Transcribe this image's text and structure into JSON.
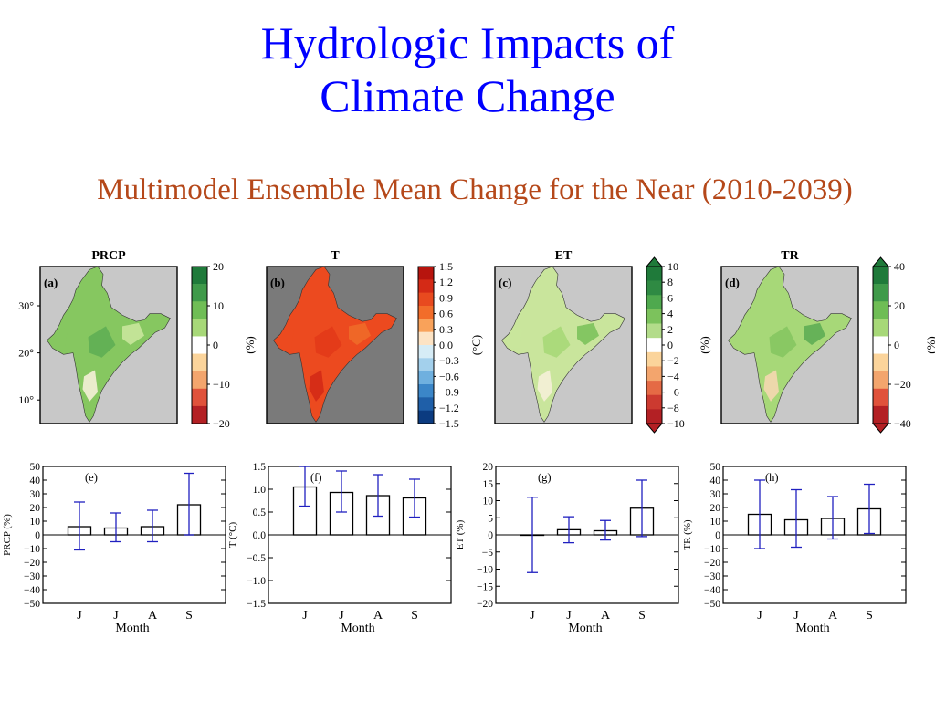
{
  "slide": {
    "title_line1": "Hydrologic Impacts of",
    "title_line2": "Climate Change",
    "subtitle": "Multimodel Ensemble Mean Change for the Near (2010-2039)"
  },
  "colors": {
    "title": "#0000ff",
    "subtitle": "#b5481a",
    "ocean_gray": "#c8c8c8",
    "dark_gray": "#7a7a7a",
    "bar_edge": "#000000",
    "error_bar": "#2020c0"
  },
  "maps": [
    {
      "panel": "(a)",
      "title": "PRCP",
      "unit": "(%)",
      "background": "ocean_gray",
      "lat_ticks": [
        "30°",
        "20°",
        "10°"
      ],
      "colorbar_labels": [
        "20",
        "10",
        "0",
        "−10",
        "−20"
      ],
      "colorbar_colors": [
        "#1f7a3a",
        "#3f9a4a",
        "#6fbd55",
        "#a7d878",
        "#ffffff",
        "#fbd49b",
        "#f3a56d",
        "#e0523b",
        "#b32024"
      ],
      "triangles": false,
      "fill_colors": [
        "#86c760",
        "#5fae54",
        "#c9e59c",
        "#f5f0d8"
      ]
    },
    {
      "panel": "(b)",
      "title": "T",
      "unit": "(°C)",
      "background": "dark_gray",
      "lat_ticks": [],
      "colorbar_labels": [
        "1.5",
        "1.2",
        "0.9",
        "0.6",
        "0.3",
        "0.0",
        "−0.3",
        "−0.6",
        "−0.9",
        "−1.2",
        "−1.5"
      ],
      "colorbar_colors": [
        "#b7140e",
        "#d42a16",
        "#e84a1f",
        "#f26d2a",
        "#f9a25a",
        "#fde3c4",
        "#d6ecf6",
        "#a3d0ec",
        "#6fb0df",
        "#3b86c8",
        "#1f5fa8",
        "#0b3b80"
      ],
      "triangles": false,
      "fill_colors": [
        "#ec4a1f",
        "#e33a18",
        "#f06a28",
        "#d42a16"
      ]
    },
    {
      "panel": "(c)",
      "title": "ET",
      "unit": "(%)",
      "background": "ocean_gray",
      "lat_ticks": [],
      "colorbar_labels": [
        "10",
        "8",
        "6",
        "4",
        "2",
        "0",
        "−2",
        "−4",
        "−6",
        "−8",
        "−10"
      ],
      "colorbar_colors": [
        "#1f7a3a",
        "#2f8a43",
        "#4fa94e",
        "#7cc25c",
        "#b3dc8a",
        "#ffffff",
        "#fbd49b",
        "#f3a56d",
        "#e56a45",
        "#cc3a30",
        "#b32024"
      ],
      "triangles": true,
      "fill_colors": [
        "#c9e59c",
        "#a7d878",
        "#7cc25c",
        "#f5f0d8"
      ]
    },
    {
      "panel": "(d)",
      "title": "TR",
      "unit": "(%)",
      "background": "ocean_gray",
      "lat_ticks": [],
      "colorbar_labels": [
        "40",
        "20",
        "0",
        "−20",
        "−40"
      ],
      "colorbar_colors": [
        "#1f7a3a",
        "#3f9a4a",
        "#6fbd55",
        "#a7d878",
        "#ffffff",
        "#fbd49b",
        "#f3a56d",
        "#e0523b",
        "#b32024"
      ],
      "triangles": true,
      "fill_colors": [
        "#a7d878",
        "#86c760",
        "#5fae54",
        "#f5d8b0"
      ]
    }
  ],
  "chart_data": [
    {
      "type": "bar",
      "panel": "(e)",
      "categories": [
        "J",
        "J",
        "A",
        "S"
      ],
      "values": [
        6,
        5,
        6,
        22
      ],
      "err_low": [
        -11,
        -5,
        -5,
        0
      ],
      "err_high": [
        24,
        16,
        18,
        45
      ],
      "ylim": [
        -50,
        50
      ],
      "ticks": [
        50,
        40,
        30,
        20,
        10,
        0,
        -10,
        -20,
        -30,
        -40,
        -50
      ],
      "tick_labels": [
        "50",
        "40",
        "30",
        "20",
        "10",
        "0",
        "−10",
        "−20",
        "−30",
        "−40",
        "−50"
      ],
      "xlabel": "Month",
      "ylabel": "PRCP (%)"
    },
    {
      "type": "bar",
      "panel": "(f)",
      "categories": [
        "J",
        "J",
        "A",
        "S"
      ],
      "values": [
        1.05,
        0.93,
        0.86,
        0.81
      ],
      "err_low": [
        0.63,
        0.5,
        0.41,
        0.39
      ],
      "err_high": [
        1.5,
        1.4,
        1.32,
        1.22
      ],
      "ylim": [
        -1.5,
        1.5
      ],
      "ticks": [
        1.5,
        1.0,
        0.5,
        0.0,
        -0.5,
        -1.0,
        -1.5
      ],
      "tick_labels": [
        "1.5",
        "1.0",
        "0.5",
        "0.0",
        "−0.5",
        "−1.0",
        "−1.5"
      ],
      "xlabel": "Month",
      "ylabel": "T (°C)"
    },
    {
      "type": "bar",
      "panel": "(g)",
      "categories": [
        "J",
        "J",
        "A",
        "S"
      ],
      "values": [
        0,
        1.5,
        1.2,
        7.8
      ],
      "err_low": [
        -11,
        -2.3,
        -1.5,
        -0.5
      ],
      "err_high": [
        11,
        5.3,
        4.2,
        16
      ],
      "ylim": [
        -20,
        20
      ],
      "ticks": [
        20,
        15,
        10,
        5,
        0,
        -5,
        -10,
        -15,
        -20
      ],
      "tick_labels": [
        "20",
        "15",
        "10",
        "5",
        "0",
        "−5",
        "−10",
        "−15",
        "−20"
      ],
      "xlabel": "Month",
      "ylabel": "ET (%)"
    },
    {
      "type": "bar",
      "panel": "(h)",
      "categories": [
        "J",
        "J",
        "A",
        "S"
      ],
      "values": [
        15,
        11,
        12,
        19
      ],
      "err_low": [
        -10,
        -9,
        -3,
        1
      ],
      "err_high": [
        40,
        33,
        28,
        37
      ],
      "ylim": [
        -50,
        50
      ],
      "ticks": [
        50,
        40,
        30,
        20,
        10,
        0,
        -10,
        -20,
        -30,
        -40,
        -50
      ],
      "tick_labels": [
        "50",
        "40",
        "30",
        "20",
        "10",
        "0",
        "−10",
        "−20",
        "−30",
        "−40",
        "−50"
      ],
      "xlabel": "Month",
      "ylabel": "TR (%)"
    }
  ]
}
